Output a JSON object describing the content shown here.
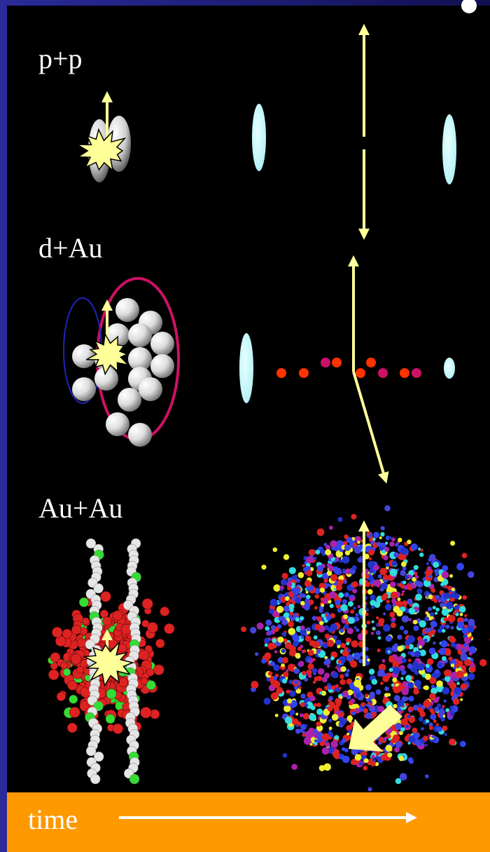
{
  "labels": {
    "pp": "p+p",
    "dau": "d+Au",
    "auau": "Au+Au"
  },
  "timeline": {
    "label": "time"
  }
}
